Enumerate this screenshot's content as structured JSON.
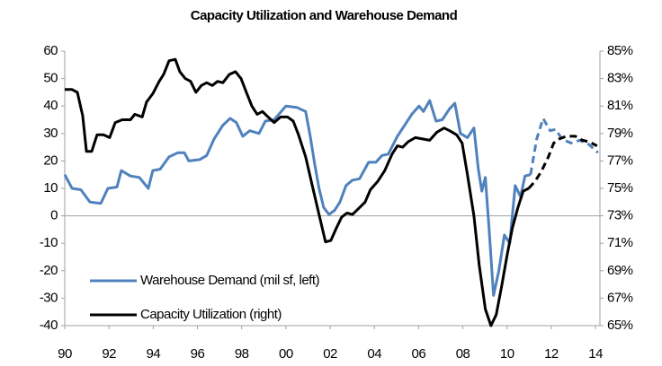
{
  "chart_data": {
    "type": "line",
    "title": "Capacity Utilization and Warehouse Demand",
    "xlim": [
      1990,
      2014.2
    ],
    "xticks": [
      {
        "value": 1990,
        "label": "90"
      },
      {
        "value": 1992,
        "label": "92"
      },
      {
        "value": 1994,
        "label": "94"
      },
      {
        "value": 1996,
        "label": "96"
      },
      {
        "value": 1998,
        "label": "98"
      },
      {
        "value": 2000,
        "label": "00"
      },
      {
        "value": 2002,
        "label": "02"
      },
      {
        "value": 2004,
        "label": "04"
      },
      {
        "value": 2006,
        "label": "06"
      },
      {
        "value": 2008,
        "label": "08"
      },
      {
        "value": 2010,
        "label": "10"
      },
      {
        "value": 2012,
        "label": "12"
      },
      {
        "value": 2014,
        "label": "14"
      }
    ],
    "ylim": [
      -40,
      60
    ],
    "yticks": [
      -40,
      -30,
      -20,
      -10,
      0,
      10,
      20,
      30,
      40,
      50,
      60
    ],
    "y2lim": [
      65,
      85
    ],
    "y2ticks": [
      {
        "value": 65,
        "label": "65%"
      },
      {
        "value": 67,
        "label": "67%"
      },
      {
        "value": 69,
        "label": "69%"
      },
      {
        "value": 71,
        "label": "71%"
      },
      {
        "value": 73,
        "label": "73%"
      },
      {
        "value": 75,
        "label": "75%"
      },
      {
        "value": 77,
        "label": "77%"
      },
      {
        "value": 79,
        "label": "79%"
      },
      {
        "value": 81,
        "label": "81%"
      },
      {
        "value": 83,
        "label": "83%"
      },
      {
        "value": 85,
        "label": "85%"
      }
    ],
    "legend": "lower left",
    "series": [
      {
        "name": "Warehouse Demand (mil sf, left)",
        "color": "#4f81bd",
        "axis": "y",
        "x": [
          1990.0,
          1990.33,
          1990.73,
          1991.14,
          1991.63,
          1991.95,
          1992.36,
          1992.56,
          1992.97,
          1993.37,
          1993.78,
          1993.98,
          1994.31,
          1994.72,
          1995.12,
          1995.41,
          1995.61,
          1996.1,
          1996.42,
          1996.75,
          1997.15,
          1997.48,
          1997.76,
          1998.05,
          1998.37,
          1998.78,
          1999.07,
          1999.47,
          2000.0,
          2000.49,
          2000.89,
          2001.1,
          2001.3,
          2001.5,
          2001.71,
          2001.95,
          2002.2,
          2002.44,
          2002.72,
          2003.01,
          2003.33,
          2003.74,
          2004.07,
          2004.35,
          2004.63,
          2005.04,
          2005.45,
          2005.69,
          2006.02,
          2006.22,
          2006.5,
          2006.79,
          2007.07,
          2007.4,
          2007.64,
          2007.89,
          2008.21,
          2008.5,
          2008.7,
          2008.86,
          2009.02,
          2009.19,
          2009.39,
          2009.63,
          2009.88,
          2010.12,
          2010.37,
          2010.61,
          2010.81,
          2011.06,
          2011.34,
          2011.63,
          2011.95,
          2012.2,
          2012.48,
          2012.89,
          2013.29,
          2013.7,
          2014.11
        ],
        "values": [
          15,
          10,
          9.5,
          5,
          4.5,
          10,
          10.5,
          16.5,
          14.5,
          14,
          10,
          16.5,
          17,
          21.5,
          23,
          23,
          20,
          20.5,
          22,
          28,
          33,
          35.5,
          34,
          29,
          31,
          30,
          34.5,
          35,
          40,
          39.5,
          38,
          29,
          19,
          10,
          3,
          0.5,
          2,
          5,
          11,
          13,
          13.5,
          19.5,
          19.5,
          22,
          22.5,
          29,
          34,
          37,
          40,
          38,
          42,
          34.5,
          35,
          39,
          41,
          30,
          28.5,
          32,
          17,
          9,
          14,
          -5,
          -29,
          -20,
          -7,
          -10,
          11,
          7,
          14.5,
          15,
          null,
          null,
          null,
          null,
          null,
          null,
          null,
          null,
          null
        ],
        "forecast": [
          null,
          null,
          null,
          null,
          null,
          null,
          null,
          null,
          null,
          null,
          null,
          null,
          null,
          null,
          null,
          null,
          null,
          null,
          null,
          null,
          null,
          null,
          null,
          null,
          null,
          null,
          null,
          null,
          null,
          null,
          null,
          null,
          null,
          null,
          null,
          null,
          null,
          null,
          null,
          null,
          null,
          null,
          null,
          null,
          null,
          null,
          null,
          null,
          null,
          null,
          null,
          null,
          null,
          null,
          null,
          null,
          null,
          null,
          null,
          null,
          null,
          null,
          null,
          null,
          null,
          null,
          null,
          null,
          null,
          15,
          28,
          35.5,
          31,
          31.5,
          28,
          26.5,
          27.5,
          26,
          23
        ]
      },
      {
        "name": "Capacity Utilization (right)",
        "color": "#000000",
        "axis": "y2",
        "x": [
          1990.0,
          1990.33,
          1990.57,
          1990.81,
          1990.98,
          1991.22,
          1991.46,
          1991.75,
          1992.03,
          1992.28,
          1992.6,
          1992.97,
          1993.17,
          1993.5,
          1993.7,
          1993.98,
          1994.27,
          1994.47,
          1994.72,
          1995.0,
          1995.2,
          1995.45,
          1995.69,
          1995.93,
          1996.18,
          1996.42,
          1996.67,
          1996.91,
          1997.15,
          1997.44,
          1997.72,
          1997.97,
          1998.21,
          1998.46,
          1998.7,
          1998.94,
          1999.19,
          1999.47,
          1999.76,
          2000.08,
          2000.33,
          2000.57,
          2000.89,
          2001.22,
          2001.5,
          2001.79,
          2002.03,
          2002.28,
          2002.52,
          2002.76,
          2003.01,
          2003.33,
          2003.58,
          2003.82,
          2004.15,
          2004.47,
          2004.8,
          2005.04,
          2005.28,
          2005.53,
          2005.85,
          2006.18,
          2006.5,
          2006.83,
          2007.15,
          2007.4,
          2007.72,
          2007.97,
          2008.21,
          2008.5,
          2008.74,
          2009.02,
          2009.27,
          2009.51,
          2009.76,
          2010.0,
          2010.24,
          2010.49,
          2010.73,
          2010.98,
          2011.26,
          2011.54,
          2011.87,
          2012.11,
          2012.36,
          2012.68,
          2013.09,
          2013.41,
          2013.7,
          2014.07
        ],
        "values": [
          82.2,
          82.2,
          82.0,
          80.3,
          77.7,
          77.7,
          78.9,
          78.9,
          78.7,
          79.8,
          80.0,
          80.0,
          80.4,
          80.2,
          81.3,
          81.9,
          82.8,
          83.3,
          84.3,
          84.4,
          83.5,
          83.0,
          82.8,
          82.0,
          82.5,
          82.7,
          82.5,
          82.8,
          82.7,
          83.3,
          83.5,
          83.0,
          82.0,
          81.0,
          80.4,
          80.6,
          80.2,
          79.8,
          80.2,
          80.2,
          79.9,
          78.9,
          77.3,
          75.0,
          73.1,
          71.1,
          71.2,
          72.1,
          72.9,
          73.2,
          73.1,
          73.6,
          74.0,
          74.9,
          75.5,
          76.3,
          77.5,
          78.1,
          78.0,
          78.4,
          78.7,
          78.6,
          78.5,
          79.1,
          79.4,
          79.2,
          78.9,
          78.3,
          76.0,
          73.0,
          69.4,
          66.2,
          65.0,
          65.8,
          67.9,
          70.1,
          72.1,
          73.6,
          74.8,
          75.0,
          null,
          null,
          null,
          null,
          null,
          null,
          null,
          null,
          null,
          null
        ],
        "forecast": [
          null,
          null,
          null,
          null,
          null,
          null,
          null,
          null,
          null,
          null,
          null,
          null,
          null,
          null,
          null,
          null,
          null,
          null,
          null,
          null,
          null,
          null,
          null,
          null,
          null,
          null,
          null,
          null,
          null,
          null,
          null,
          null,
          null,
          null,
          null,
          null,
          null,
          null,
          null,
          null,
          null,
          null,
          null,
          null,
          null,
          null,
          null,
          null,
          null,
          null,
          null,
          null,
          null,
          null,
          null,
          null,
          null,
          null,
          null,
          null,
          null,
          null,
          null,
          null,
          null,
          null,
          null,
          null,
          null,
          null,
          null,
          null,
          null,
          null,
          null,
          null,
          null,
          null,
          null,
          75.0,
          75.5,
          76.2,
          77.3,
          78.3,
          78.6,
          78.8,
          78.8,
          78.5,
          78.4,
          78.1
        ]
      }
    ]
  }
}
